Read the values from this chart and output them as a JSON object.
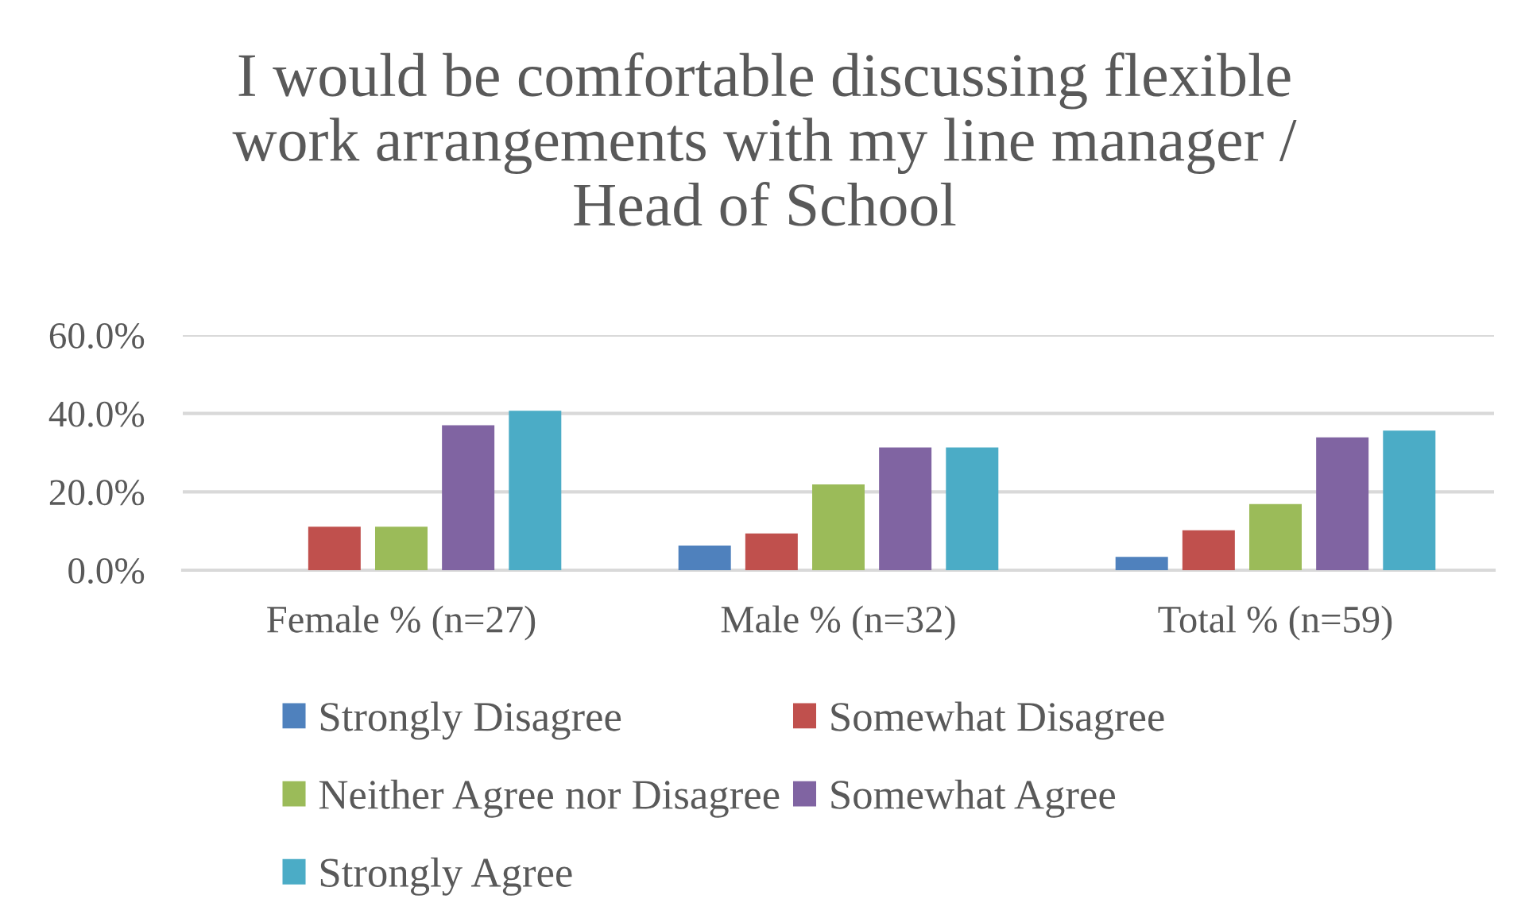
{
  "chart_data": {
    "type": "bar",
    "title": "I would be comfortable discussing flexible work arrangements with my line manager / Head of School",
    "categories": [
      "Female % (n=27)",
      "Male % (n=32)",
      "Total % (n=59)"
    ],
    "series": [
      {
        "name": "Strongly Disagree",
        "color": "#4f81bd",
        "values": [
          0,
          6.3,
          3.4
        ]
      },
      {
        "name": "Somewhat Disagree",
        "color": "#c0504d",
        "values": [
          11.1,
          9.4,
          10.2
        ]
      },
      {
        "name": "Neither Agree nor Disagree",
        "color": "#9bbb59",
        "values": [
          11.1,
          21.9,
          16.9
        ]
      },
      {
        "name": "Somewhat Agree",
        "color": "#8064a2",
        "values": [
          37.0,
          31.3,
          33.9
        ]
      },
      {
        "name": "Strongly Agree",
        "color": "#4bacc6",
        "values": [
          40.7,
          31.3,
          35.6
        ]
      }
    ],
    "ylim": [
      0,
      60
    ],
    "yticks": [
      {
        "value": 0,
        "label": "0.0%"
      },
      {
        "value": 20,
        "label": "20.0%"
      },
      {
        "value": 40,
        "label": "40.0%"
      },
      {
        "value": 60,
        "label": "60.0%"
      }
    ],
    "grid": "y",
    "legend": "bottom"
  }
}
